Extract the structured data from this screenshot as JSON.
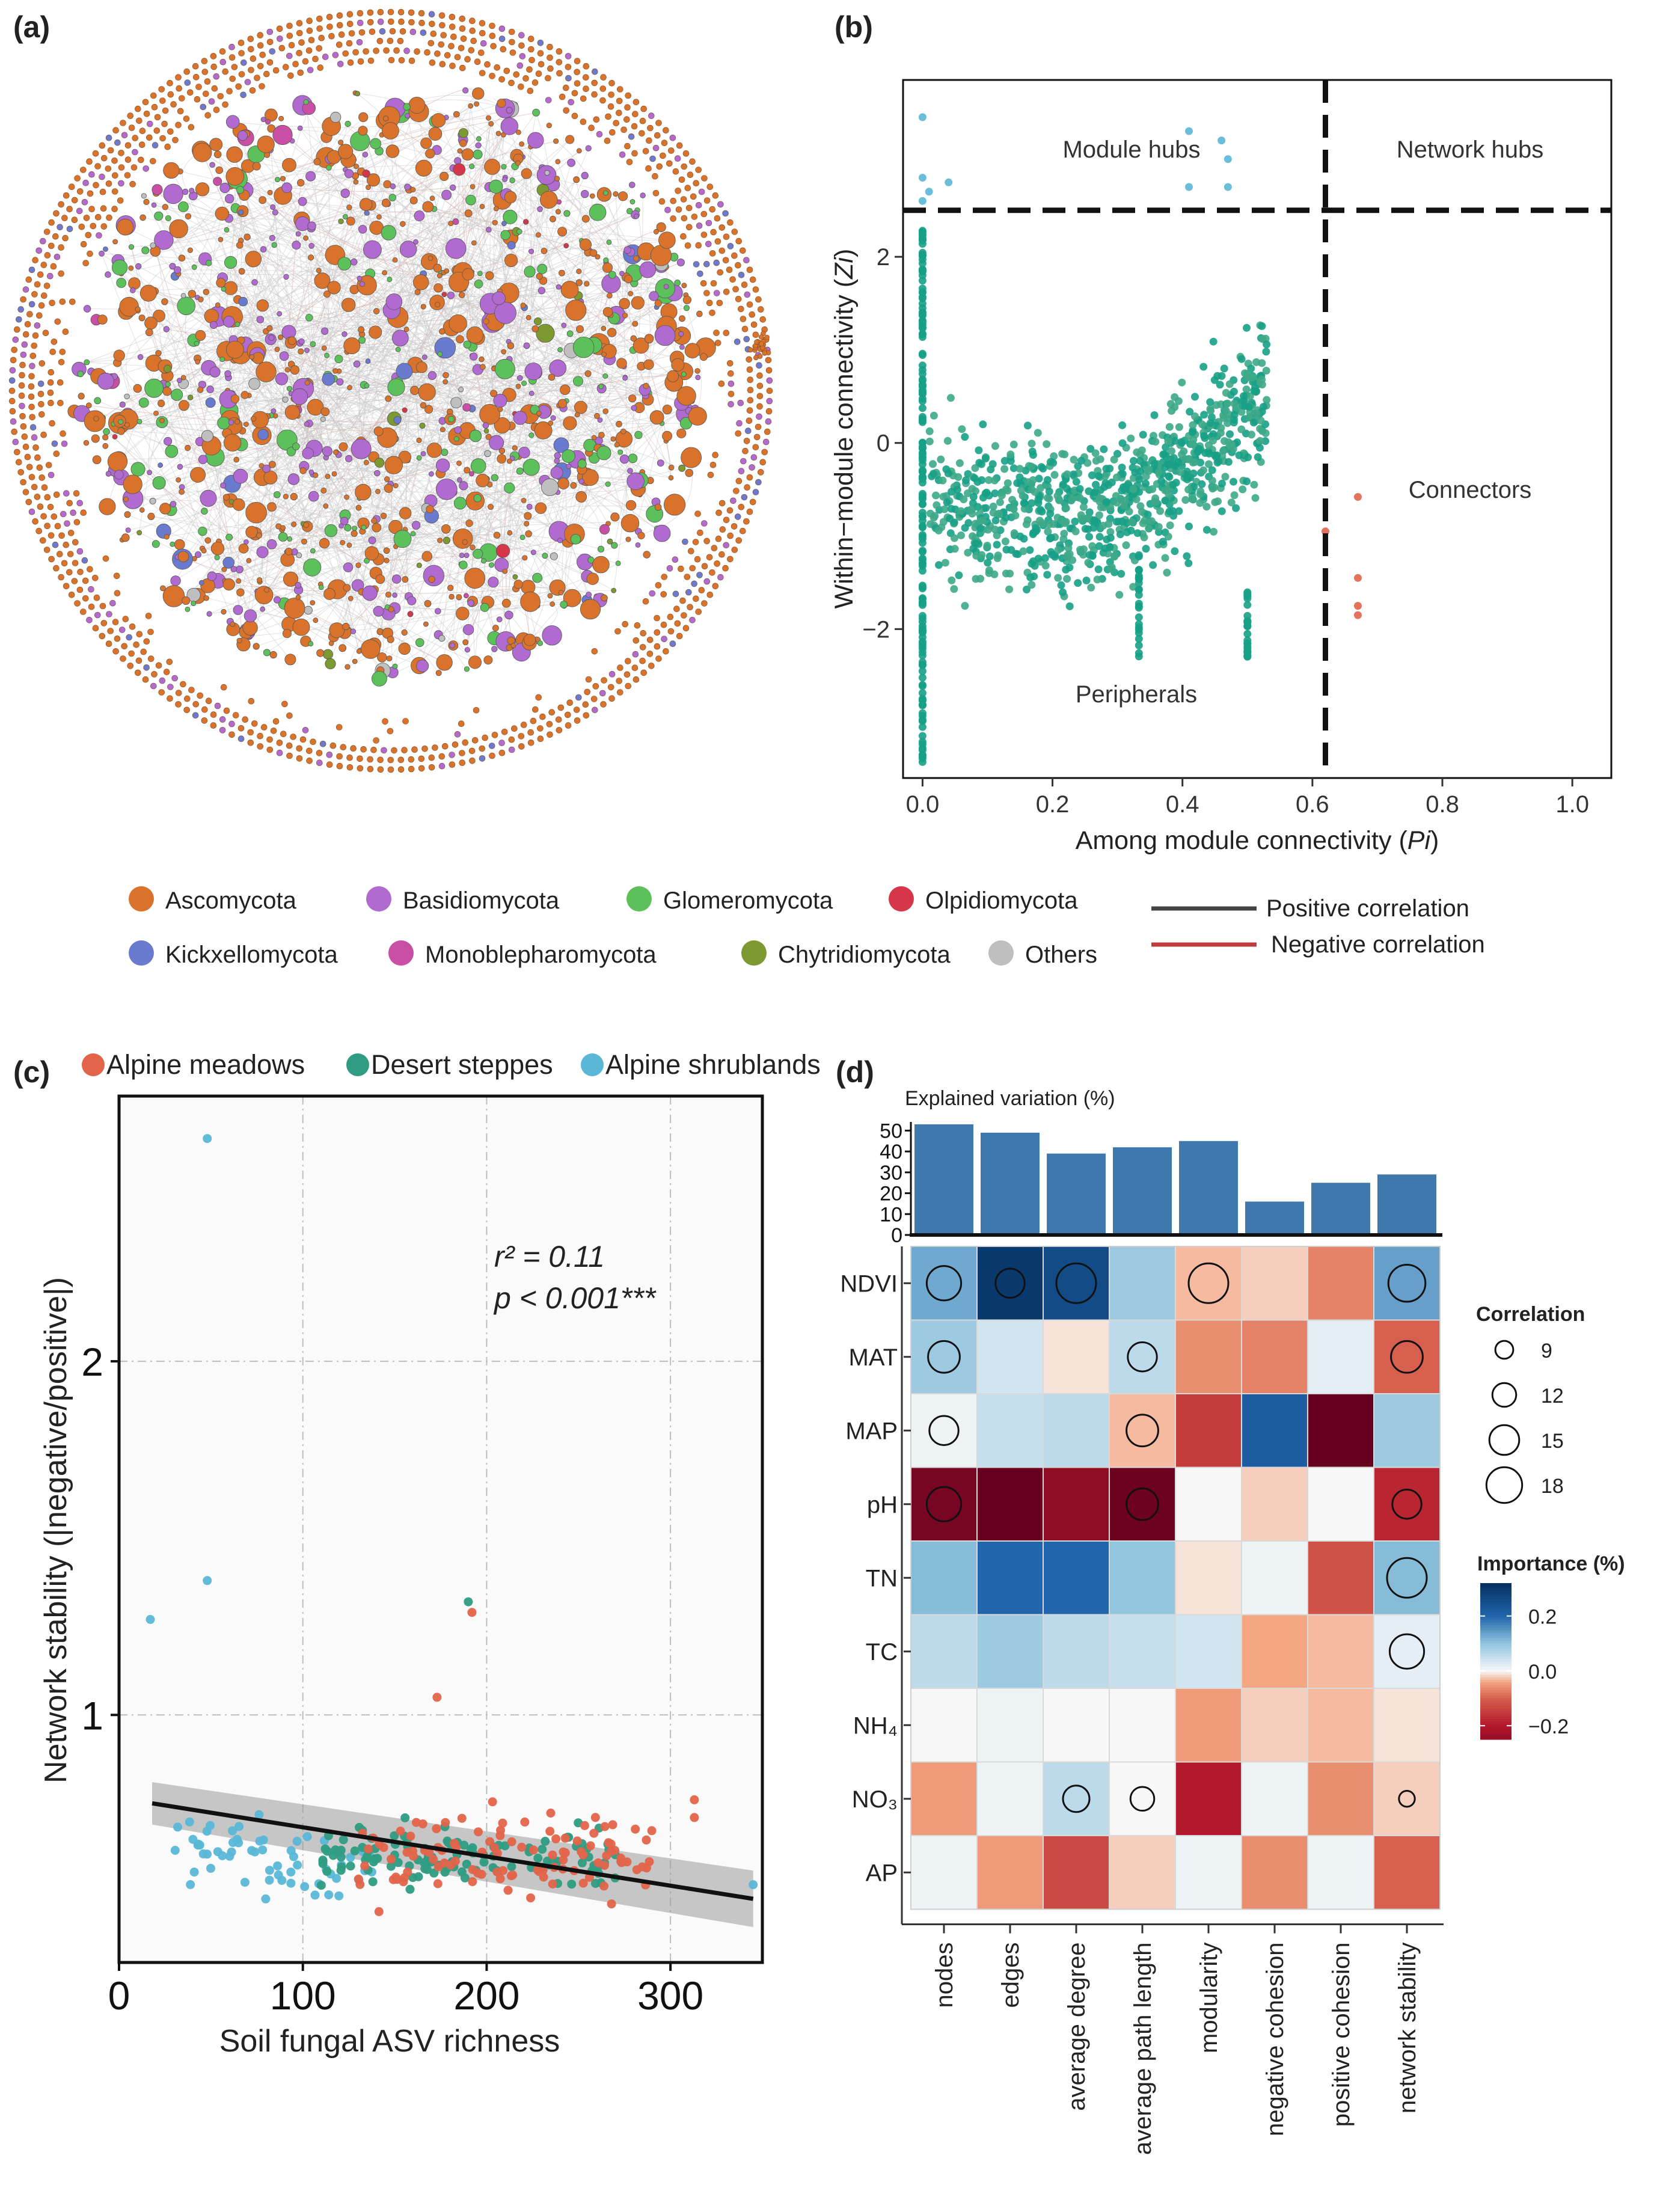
{
  "chart_data": [
    {
      "panel": "(a)",
      "type": "network",
      "description_legend": [
        {
          "name": "Ascomycota",
          "color": "#d9732b"
        },
        {
          "name": "Basidiomycota",
          "color": "#b06ad0"
        },
        {
          "name": "Glomeromycota",
          "color": "#5cc15a"
        },
        {
          "name": "Olpidiomycota",
          "color": "#d6364a"
        },
        {
          "name": "Kickxellomycota",
          "color": "#6a7bcf"
        },
        {
          "name": "Monoblepharomycota",
          "color": "#c84fa4"
        },
        {
          "name": "Chytridiomycota",
          "color": "#7c9a2f"
        },
        {
          "name": "Others",
          "color": "#bfbfbf"
        }
      ],
      "edge_legend": [
        {
          "name": "Positive correlation",
          "color": "#444444"
        },
        {
          "name": "Negative correlation",
          "color": "#c0393b"
        }
      ]
    },
    {
      "panel": "(b)",
      "type": "scatter",
      "xlabel": "Among module connectivity (",
      "xlabel_italic": "Pi",
      "ylabel": "Within−module connectivity (",
      "ylabel_italic": "Zi",
      "xlim": [
        -0.03,
        1.06
      ],
      "ylim": [
        -3.6,
        3.9
      ],
      "xticks": [
        0.0,
        0.2,
        0.4,
        0.6,
        0.8,
        1.0
      ],
      "xtick_labels": [
        "0.0",
        "0.2",
        "0.4",
        "0.6",
        "0.8",
        "1.0"
      ],
      "yticks": [
        -2,
        0,
        2
      ],
      "ytick_labels": [
        "−2",
        "0",
        "2"
      ],
      "thresholds": {
        "zi": 2.5,
        "pi": 0.62
      },
      "regions": [
        "Module hubs",
        "Network hubs",
        "Connectors",
        "Peripherals"
      ],
      "colors": {
        "peripherals": "#17a086",
        "module_hubs": "#5ab7d6",
        "connectors": "#e0644a"
      },
      "module_hubs": [
        [
          0.0,
          3.5
        ],
        [
          0.0,
          2.85
        ],
        [
          0.01,
          2.7
        ],
        [
          0.0,
          2.6
        ],
        [
          0.04,
          2.8
        ],
        [
          0.41,
          3.35
        ],
        [
          0.46,
          3.25
        ],
        [
          0.47,
          3.05
        ],
        [
          0.41,
          2.75
        ],
        [
          0.47,
          2.75
        ]
      ],
      "connectors": [
        [
          0.67,
          -0.58
        ],
        [
          0.62,
          -0.95
        ],
        [
          0.67,
          -1.45
        ],
        [
          0.67,
          -1.75
        ],
        [
          0.67,
          -1.85
        ]
      ],
      "peripheral_columns": [
        {
          "x": 0.0,
          "ymin": -3.5,
          "ymax": 2.3
        },
        {
          "x": 0.333,
          "ymin": -2.3,
          "ymax": -1.2
        },
        {
          "x": 0.5,
          "ymin": -2.3,
          "ymax": -1.6
        }
      ]
    },
    {
      "panel": "(c)",
      "type": "scatter",
      "xlabel": "Soil fungal ASV richness",
      "ylabel": "Network stability (|negative/positive|)",
      "xlim": [
        0,
        350
      ],
      "ylim": [
        0.3,
        2.75
      ],
      "xticks": [
        0,
        100,
        200,
        300
      ],
      "xtick_labels": [
        "0",
        "100",
        "200",
        "300"
      ],
      "yticks": [
        1,
        2
      ],
      "ytick_labels": [
        "1",
        "2"
      ],
      "annotation": {
        "r2_label": "r² = 0.11",
        "p_label": "p < 0.001***"
      },
      "regression": {
        "x": [
          18,
          345
        ],
        "y": [
          0.75,
          0.48
        ],
        "ci_halfwidth": [
          0.06,
          0.08
        ],
        "color": "#111111"
      },
      "legend": [
        {
          "name": "Alpine meadows",
          "color": "#e2644a"
        },
        {
          "name": "Desert steppes",
          "color": "#2f9c83"
        },
        {
          "name": "Alpine shrublands",
          "color": "#5ab7d6"
        }
      ],
      "outliers": [
        {
          "group": 2,
          "x": 48,
          "y": 2.63
        },
        {
          "group": 2,
          "x": 48,
          "y": 1.38
        },
        {
          "group": 2,
          "x": 17,
          "y": 1.27
        },
        {
          "group": 1,
          "x": 190,
          "y": 1.32
        },
        {
          "group": 0,
          "x": 192,
          "y": 1.29
        },
        {
          "group": 0,
          "x": 173,
          "y": 1.05
        },
        {
          "group": 0,
          "x": 313,
          "y": 0.76
        },
        {
          "group": 0,
          "x": 313,
          "y": 0.71
        },
        {
          "group": 2,
          "x": 345,
          "y": 0.52
        }
      ]
    },
    {
      "panel": "(d)",
      "type": "heatmap",
      "bar_title": "Explained variation (%)",
      "bar_yticks": [
        0,
        10,
        20,
        30,
        40,
        50
      ],
      "bar_ytick_labels": [
        "0",
        "10",
        "20",
        "30",
        "40",
        "50"
      ],
      "bar_max": 53,
      "bar_color": "#3f78ac",
      "columns": [
        "nodes",
        "edges",
        "average degree",
        "average path length",
        "modularity",
        "negative cohesion",
        "positive cohesion",
        "network stability"
      ],
      "explained_variation": [
        53,
        49,
        39,
        42,
        45,
        16,
        25,
        29
      ],
      "rows": [
        "NDVI",
        "MAT",
        "MAP",
        "pH",
        "TN",
        "TC",
        "NH₄",
        "NO₃",
        "AP"
      ],
      "importance": [
        [
          0.13,
          0.3,
          0.26,
          0.09,
          -0.03,
          -0.02,
          -0.07,
          0.14
        ],
        [
          0.09,
          0.04,
          -0.01,
          0.06,
          -0.06,
          -0.07,
          0.02,
          -0.1
        ],
        [
          0.01,
          0.05,
          0.06,
          -0.03,
          -0.15,
          0.22,
          -0.33,
          0.09
        ],
        [
          -0.3,
          -0.33,
          -0.26,
          -0.32,
          0.0,
          -0.02,
          0.0,
          -0.18
        ],
        [
          0.11,
          0.2,
          0.2,
          0.1,
          -0.01,
          0.01,
          -0.12,
          0.11
        ],
        [
          0.06,
          0.09,
          0.06,
          0.05,
          0.04,
          -0.04,
          -0.03,
          0.02
        ],
        [
          0.0,
          0.01,
          0.0,
          0.0,
          -0.05,
          -0.02,
          -0.03,
          -0.01
        ],
        [
          -0.05,
          0.01,
          0.06,
          0.0,
          -0.2,
          0.01,
          -0.06,
          -0.02
        ],
        [
          0.01,
          -0.05,
          -0.13,
          -0.02,
          0.01,
          -0.06,
          0.01,
          -0.1
        ]
      ],
      "circles": [
        [
          13,
          11,
          15,
          0,
          15,
          0,
          0,
          14
        ],
        [
          12,
          0,
          0,
          11,
          0,
          0,
          0,
          12
        ],
        [
          11,
          0,
          0,
          12,
          0,
          0,
          0,
          0
        ],
        [
          13,
          0,
          0,
          12,
          0,
          0,
          0,
          11
        ],
        [
          0,
          0,
          0,
          0,
          0,
          0,
          0,
          15
        ],
        [
          0,
          0,
          0,
          0,
          0,
          0,
          0,
          13
        ],
        [
          0,
          0,
          0,
          0,
          0,
          0,
          0,
          0
        ],
        [
          0,
          0,
          10,
          9,
          0,
          0,
          0,
          6
        ],
        [
          0,
          0,
          0,
          0,
          0,
          0,
          0,
          0
        ]
      ],
      "correlation_legend_title": "Correlation",
      "correlation_legend_values": [
        9,
        12,
        15,
        18
      ],
      "correlation_legend_labels": [
        "9",
        "12",
        "15",
        "18"
      ],
      "importance_legend_title": "Importance (%)",
      "importance_range": [
        -0.25,
        0.32
      ],
      "importance_legend_ticks": [
        0.2,
        0.0,
        -0.2
      ],
      "importance_legend_labels": [
        "0.2",
        "0.0",
        "−0.2"
      ]
    }
  ],
  "panel_labels": [
    "(a)",
    "(b)",
    "(c)",
    "(d)"
  ]
}
